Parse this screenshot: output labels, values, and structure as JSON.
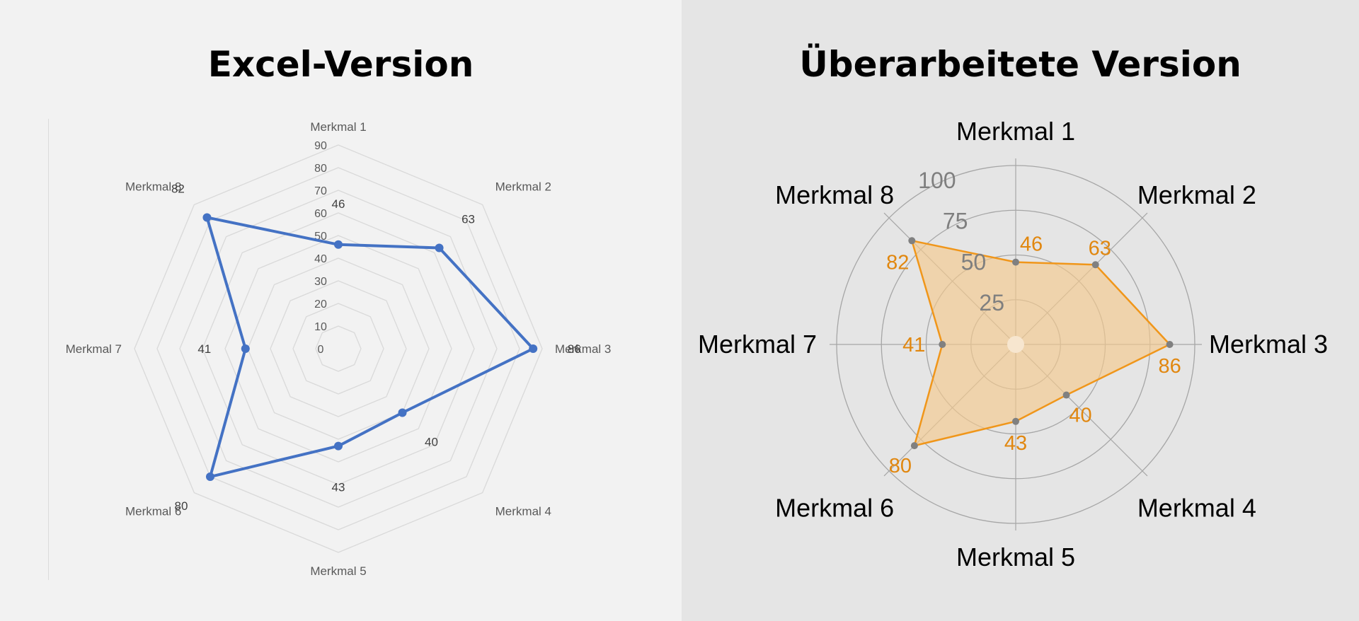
{
  "panels": {
    "left": {
      "title": "Excel-Version"
    },
    "right": {
      "title": "Überarbeitete Version"
    }
  },
  "chart_data": [
    {
      "type": "radar",
      "title": "Excel-Version",
      "categories": [
        "Merkmal 1",
        "Merkmal 2",
        "Merkmal 3",
        "Merkmal 4",
        "Merkmal 5",
        "Merkmal 6",
        "Merkmal 7",
        "Merkmal 8"
      ],
      "series": [
        {
          "values": [
            46,
            63,
            86,
            40,
            43,
            80,
            41,
            82
          ]
        }
      ],
      "rlim": [
        0,
        90
      ],
      "ticks": [
        0,
        10,
        20,
        30,
        40,
        50,
        60,
        70,
        80,
        90
      ],
      "grid": "octagon",
      "colors": {
        "line": "#4472c4",
        "grid": "#d9d9d9",
        "label": "#595959"
      }
    },
    {
      "type": "radar",
      "title": "Überarbeitete Version",
      "categories": [
        "Merkmal 1",
        "Merkmal 2",
        "Merkmal 3",
        "Merkmal 4",
        "Merkmal 5",
        "Merkmal 6",
        "Merkmal 7",
        "Merkmal 8"
      ],
      "series": [
        {
          "values": [
            46,
            63,
            86,
            40,
            43,
            80,
            41,
            82
          ]
        }
      ],
      "rlim": [
        0,
        100
      ],
      "ticks": [
        25,
        50,
        75,
        100
      ],
      "grid": "circle",
      "colors": {
        "line": "#f0961a",
        "fill": "#f5c98e",
        "value_label": "#e1870f",
        "point": "#808080",
        "grid": "#a6a6a6",
        "tick_label": "#7f7f7f"
      }
    }
  ]
}
